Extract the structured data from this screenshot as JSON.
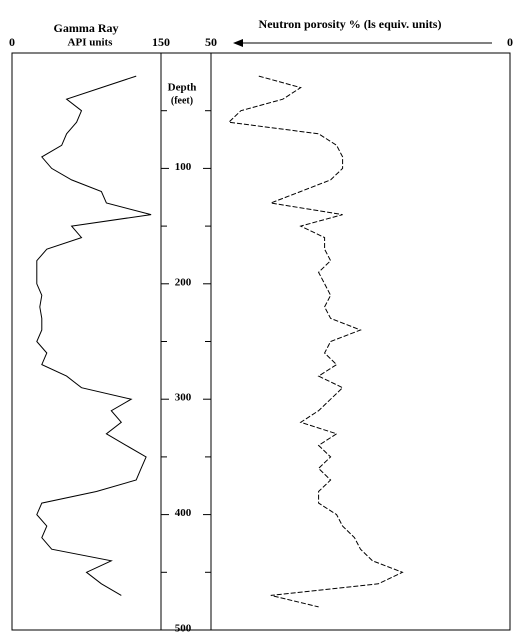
{
  "chart_data": {
    "type": "well-log",
    "ylabel": "Depth",
    "yunit": "(feet)",
    "ylim": [
      0,
      500
    ],
    "yticks": [
      100,
      200,
      300,
      400,
      500
    ],
    "minor_yticks": [
      50,
      150,
      250,
      350,
      450
    ],
    "depth": [
      20,
      30,
      40,
      50,
      60,
      70,
      80,
      90,
      100,
      110,
      120,
      130,
      140,
      150,
      160,
      170,
      180,
      190,
      200,
      210,
      220,
      230,
      240,
      250,
      260,
      270,
      280,
      290,
      300,
      310,
      320,
      330,
      340,
      350,
      360,
      370,
      380,
      390,
      400,
      410,
      420,
      430,
      440,
      450,
      460,
      470,
      480
    ],
    "tracks": [
      {
        "title": "Gamma Ray",
        "units": "API units",
        "xlim": [
          0,
          150
        ],
        "xticks": [
          0,
          150
        ],
        "color": "#000000",
        "dashed": false,
        "values": [
          125,
          90,
          55,
          70,
          65,
          55,
          50,
          30,
          40,
          60,
          90,
          95,
          140,
          60,
          70,
          35,
          25,
          25,
          25,
          30,
          28,
          30,
          30,
          25,
          35,
          30,
          55,
          70,
          120,
          100,
          110,
          95,
          115,
          135,
          130,
          125,
          85,
          30,
          25,
          35,
          30,
          40,
          100,
          75,
          90,
          110,
          null
        ]
      },
      {
        "title": "Neutron porosity % (ls equiv. units)",
        "xlim": [
          50,
          0
        ],
        "xticks": [
          50,
          0
        ],
        "color": "#000000",
        "dashed": true,
        "values": [
          42,
          35,
          38,
          45,
          47,
          32,
          29,
          28,
          28,
          30,
          35,
          40,
          28,
          35,
          31,
          31,
          30,
          32,
          31,
          30,
          31,
          30,
          25,
          30,
          31,
          29,
          32,
          28,
          30,
          32,
          35,
          29,
          32,
          30,
          32,
          30,
          32,
          32,
          29,
          28,
          26,
          25,
          23,
          18,
          22,
          40,
          32
        ]
      }
    ]
  }
}
